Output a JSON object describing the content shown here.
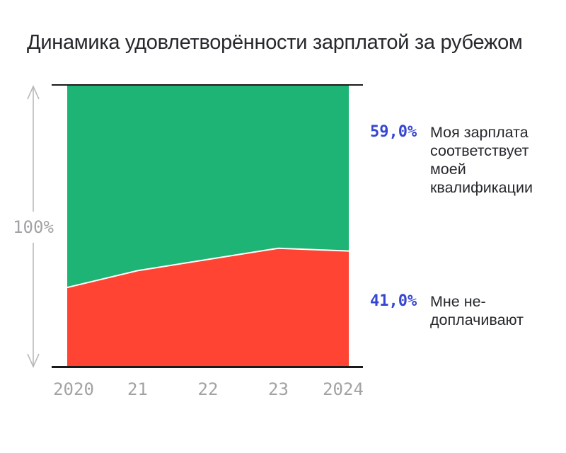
{
  "title": "Динамика удовлетворённости зарплатой за рубежом",
  "colors": {
    "green_series": "#1eb475",
    "red_series": "#ff4433",
    "accent_blue": "#3546d2",
    "axis_black": "#1a1a1a",
    "tick_gray": "#a2a2a6",
    "arrow_gray": "#b9b9bd",
    "boundary_white": "#ffffff"
  },
  "y_axis": {
    "label": "100%"
  },
  "chart_data": {
    "type": "area",
    "stacked": true,
    "title": "Динамика удовлетворённости зарплатой за рубежом",
    "categories": [
      "2020",
      "21",
      "22",
      "23",
      "2024"
    ],
    "series": [
      {
        "name": "Моя зарплата соответствует моей квалификации",
        "color": "#1eb475",
        "values": [
          72,
          66,
          62,
          58,
          59
        ]
      },
      {
        "name": "Мне недоплачивают",
        "color": "#ff4433",
        "values": [
          28,
          34,
          38,
          42,
          41
        ]
      }
    ],
    "ylim": [
      0,
      100
    ],
    "ylabel": "100%",
    "xlabel": "",
    "grid": false,
    "legend_position": "right",
    "annotations": [
      {
        "value_label": "59,0%",
        "text": "Моя зарплата соответствует моей квалификации"
      },
      {
        "value_label": "41,0%",
        "text": "Мне не-доплачивают"
      }
    ]
  }
}
